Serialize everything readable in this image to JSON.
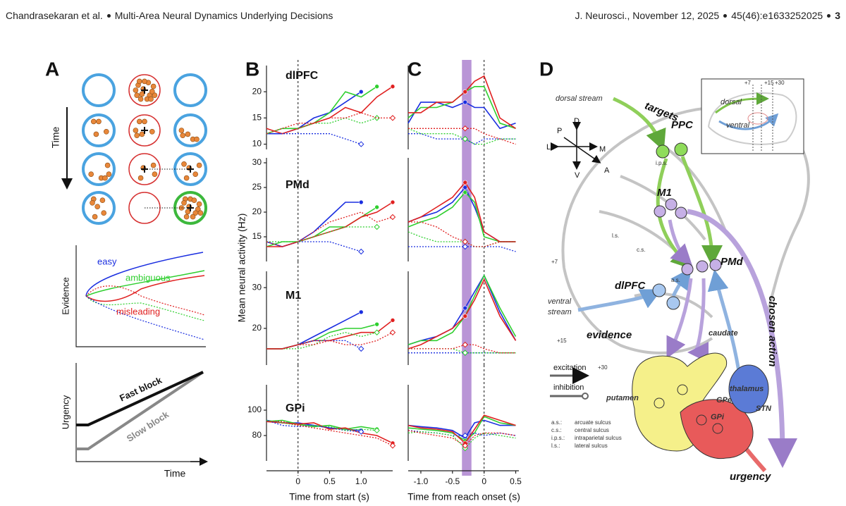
{
  "header": {
    "authors": "Chandrasekaran et al.",
    "title": "Multi-Area Neural Dynamics Underlying Decisions",
    "journal": "J. Neurosci., November 12, 2025",
    "citation": "45(46):e1633252025",
    "page": "3"
  },
  "panel_a": {
    "label": "A",
    "time_arrow": "Time",
    "evidence": {
      "y_label": "Evidence",
      "easy": "easy",
      "ambiguous": "ambiguous",
      "misleading": "misleading"
    },
    "urgency": {
      "y_label": "Urgency",
      "x_label": "Time",
      "fast": "Fast block",
      "slow": "Slow block"
    }
  },
  "panel_b": {
    "label": "B",
    "x_label": "Time from start (s)"
  },
  "panel_c": {
    "label": "C",
    "x_label": "Time from reach onset (s)"
  },
  "y_label": "Mean neural activity (Hz)",
  "chart_data": [
    {
      "type": "line",
      "title": "dlPFC",
      "x": [
        -0.5,
        -0.25,
        0,
        0.25,
        0.5,
        0.75,
        1.0,
        1.25,
        1.5
      ],
      "xlim": [
        -0.5,
        1.5
      ],
      "ylim": [
        9,
        25
      ],
      "yticks": [
        10,
        15,
        20
      ],
      "vline": 0,
      "series": [
        {
          "color": "#1a2ee0",
          "style": "solid",
          "values": [
            12,
            12,
            13,
            15,
            16,
            18,
            20,
            null,
            null
          ]
        },
        {
          "color": "#2fcf2f",
          "style": "solid",
          "values": [
            12,
            13,
            13,
            14,
            16,
            20,
            19,
            21,
            null
          ]
        },
        {
          "color": "#e02020",
          "style": "solid",
          "values": [
            13,
            12,
            13,
            14,
            15,
            17,
            16,
            19,
            21
          ]
        },
        {
          "color": "#1a2ee0",
          "style": "dotted",
          "values": [
            12,
            12,
            12,
            12,
            12,
            11,
            10,
            null,
            null
          ]
        },
        {
          "color": "#2fcf2f",
          "style": "dotted",
          "values": [
            12,
            13,
            13,
            14,
            14,
            15,
            14,
            15,
            null
          ]
        },
        {
          "color": "#e02020",
          "style": "dotted",
          "values": [
            12,
            13,
            14,
            14,
            15,
            15,
            16,
            15,
            15
          ]
        }
      ]
    },
    {
      "type": "line",
      "title": "PMd",
      "x": [
        -0.5,
        -0.25,
        0,
        0.25,
        0.5,
        0.75,
        1.0,
        1.25,
        1.5
      ],
      "xlim": [
        -0.5,
        1.5
      ],
      "ylim": [
        10,
        31
      ],
      "yticks": [
        15,
        20,
        25,
        30
      ],
      "vline": 0,
      "series": [
        {
          "color": "#1a2ee0",
          "style": "solid",
          "values": [
            14,
            13,
            14,
            16,
            19,
            22,
            22,
            null,
            null
          ]
        },
        {
          "color": "#2fcf2f",
          "style": "solid",
          "values": [
            13,
            14,
            14,
            15,
            17,
            17,
            19,
            21,
            null
          ]
        },
        {
          "color": "#e02020",
          "style": "solid",
          "values": [
            13,
            13,
            14,
            15,
            16,
            17,
            19,
            20,
            22
          ]
        },
        {
          "color": "#1a2ee0",
          "style": "dotted",
          "values": [
            14,
            13,
            14,
            14,
            14,
            13,
            12,
            null,
            null
          ]
        },
        {
          "color": "#2fcf2f",
          "style": "dotted",
          "values": [
            14,
            14,
            14,
            15,
            16,
            17,
            17,
            17,
            null
          ]
        },
        {
          "color": "#e02020",
          "style": "dotted",
          "values": [
            14,
            13,
            14,
            16,
            18,
            19,
            20,
            18,
            19
          ]
        }
      ]
    },
    {
      "type": "line",
      "title": "M1",
      "x": [
        -0.5,
        -0.25,
        0,
        0.25,
        0.5,
        0.75,
        1.0,
        1.25,
        1.5
      ],
      "xlim": [
        -0.5,
        1.5
      ],
      "ylim": [
        11,
        34
      ],
      "yticks": [
        20,
        30
      ],
      "vline": 0,
      "series": [
        {
          "color": "#1a2ee0",
          "style": "solid",
          "values": [
            15,
            15,
            16,
            18,
            20,
            22,
            24,
            null,
            null
          ]
        },
        {
          "color": "#2fcf2f",
          "style": "solid",
          "values": [
            15,
            15,
            16,
            17,
            19,
            20,
            20,
            21,
            null
          ]
        },
        {
          "color": "#e02020",
          "style": "solid",
          "values": [
            15,
            15,
            16,
            17,
            17,
            18,
            19,
            19,
            22
          ]
        },
        {
          "color": "#1a2ee0",
          "style": "dotted",
          "values": [
            15,
            15,
            16,
            17,
            17,
            17,
            15,
            null,
            null
          ]
        },
        {
          "color": "#2fcf2f",
          "style": "dotted",
          "values": [
            15,
            15,
            15,
            16,
            18,
            19,
            18,
            19,
            null
          ]
        },
        {
          "color": "#e02020",
          "style": "dotted",
          "values": [
            15,
            15,
            16,
            16,
            17,
            16,
            16,
            17,
            19
          ]
        }
      ]
    },
    {
      "type": "line",
      "title": "GPi",
      "x": [
        -0.5,
        -0.25,
        0,
        0.25,
        0.5,
        0.75,
        1.0,
        1.25,
        1.5
      ],
      "xlim": [
        -0.5,
        1.5
      ],
      "ylim": [
        60,
        120
      ],
      "yticks": [
        80,
        100
      ],
      "xticks": [
        0,
        0.5,
        {
          "value": 1,
          "label": "1.0"
        }
      ],
      "vline": 0,
      "series": [
        {
          "color": "#1a2ee0",
          "style": "solid",
          "values": [
            92,
            90,
            90,
            88,
            86,
            85,
            84,
            null,
            null
          ]
        },
        {
          "color": "#2fcf2f",
          "style": "solid",
          "values": [
            91,
            92,
            89,
            87,
            88,
            85,
            87,
            85,
            null
          ]
        },
        {
          "color": "#e02020",
          "style": "solid",
          "values": [
            91,
            90,
            89,
            90,
            85,
            86,
            82,
            80,
            74
          ]
        },
        {
          "color": "#1a2ee0",
          "style": "dotted",
          "values": [
            92,
            88,
            87,
            88,
            86,
            84,
            83,
            null,
            null
          ]
        },
        {
          "color": "#2fcf2f",
          "style": "dotted",
          "values": [
            92,
            90,
            88,
            88,
            87,
            84,
            85,
            84,
            null
          ]
        },
        {
          "color": "#e02020",
          "style": "dotted",
          "values": [
            91,
            91,
            88,
            86,
            84,
            82,
            80,
            78,
            72
          ]
        }
      ]
    },
    {
      "type": "line",
      "x": [
        -1.2,
        -1.0,
        -0.75,
        -0.5,
        -0.3,
        -0.15,
        0,
        0.25,
        0.5
      ],
      "xlim": [
        -1.2,
        0.55
      ],
      "ylim": [
        9,
        25
      ],
      "vline": 0,
      "band": [
        -0.35,
        -0.2
      ],
      "band_color": "#b995d6",
      "series": [
        {
          "color": "#1a2ee0",
          "style": "solid",
          "values": [
            14,
            18,
            18,
            17,
            18,
            17,
            17,
            13,
            14
          ]
        },
        {
          "color": "#2fcf2f",
          "style": "solid",
          "values": [
            15,
            17,
            17,
            18,
            20,
            21,
            21,
            14,
            13
          ]
        },
        {
          "color": "#e02020",
          "style": "solid",
          "values": [
            16,
            16,
            18,
            18,
            20,
            22,
            23,
            15,
            13
          ]
        },
        {
          "color": "#1a2ee0",
          "style": "dotted",
          "values": [
            12,
            12,
            11,
            11,
            11,
            10,
            11,
            11,
            11
          ]
        },
        {
          "color": "#2fcf2f",
          "style": "dotted",
          "values": [
            13,
            12,
            12,
            12,
            11,
            10,
            10,
            11,
            11
          ]
        },
        {
          "color": "#e02020",
          "style": "dotted",
          "values": [
            13,
            13,
            13,
            13,
            13,
            13,
            12,
            11,
            10
          ]
        }
      ]
    },
    {
      "type": "line",
      "x": [
        -1.2,
        -1.0,
        -0.75,
        -0.5,
        -0.3,
        -0.15,
        0,
        0.25,
        0.5
      ],
      "xlim": [
        -1.2,
        0.55
      ],
      "ylim": [
        10,
        31
      ],
      "vline": 0,
      "band": [
        -0.35,
        -0.2
      ],
      "band_color": "#b995d6",
      "series": [
        {
          "color": "#1a2ee0",
          "style": "solid",
          "values": [
            18,
            19,
            20,
            22,
            25,
            21,
            16,
            14,
            14
          ]
        },
        {
          "color": "#2fcf2f",
          "style": "solid",
          "values": [
            17,
            18,
            19,
            21,
            24,
            22,
            15,
            14,
            14
          ]
        },
        {
          "color": "#e02020",
          "style": "solid",
          "values": [
            18,
            19,
            21,
            23,
            26,
            23,
            16,
            14,
            14
          ]
        },
        {
          "color": "#1a2ee0",
          "style": "dotted",
          "values": [
            13,
            13,
            13,
            13,
            13,
            13,
            13,
            13,
            12
          ]
        },
        {
          "color": "#2fcf2f",
          "style": "dotted",
          "values": [
            16,
            15,
            14,
            14,
            14,
            13,
            13,
            14,
            14
          ]
        },
        {
          "color": "#e02020",
          "style": "dotted",
          "values": [
            18,
            18,
            17,
            15,
            14,
            13,
            13,
            14,
            14
          ]
        }
      ]
    },
    {
      "type": "line",
      "x": [
        -1.2,
        -1.0,
        -0.75,
        -0.5,
        -0.3,
        -0.15,
        0,
        0.25,
        0.5
      ],
      "xlim": [
        -1.2,
        0.55
      ],
      "ylim": [
        11,
        34
      ],
      "vline": 0,
      "band": [
        -0.35,
        -0.2
      ],
      "band_color": "#b995d6",
      "series": [
        {
          "color": "#1a2ee0",
          "style": "solid",
          "values": [
            16,
            17,
            18,
            20,
            25,
            29,
            33,
            24,
            17
          ]
        },
        {
          "color": "#2fcf2f",
          "style": "solid",
          "values": [
            16,
            17,
            17,
            19,
            23,
            28,
            33,
            25,
            18
          ]
        },
        {
          "color": "#e02020",
          "style": "solid",
          "values": [
            15,
            16,
            18,
            20,
            23,
            27,
            32,
            23,
            17
          ]
        },
        {
          "color": "#1a2ee0",
          "style": "dotted",
          "values": [
            14,
            14,
            14,
            14,
            14,
            14,
            14,
            14,
            14
          ]
        },
        {
          "color": "#2fcf2f",
          "style": "dotted",
          "values": [
            15,
            15,
            15,
            15,
            14,
            14,
            14,
            14,
            14
          ]
        },
        {
          "color": "#e02020",
          "style": "dotted",
          "values": [
            15,
            15,
            15,
            15,
            16,
            16,
            15,
            14,
            14
          ]
        }
      ]
    },
    {
      "type": "line",
      "x": [
        -1.2,
        -1.0,
        -0.75,
        -0.5,
        -0.3,
        -0.15,
        0,
        0.25,
        0.5
      ],
      "xlim": [
        -1.2,
        0.55
      ],
      "ylim": [
        60,
        120
      ],
      "xticks": [
        {
          "value": -1,
          "label": "-1.0"
        },
        -0.5,
        0,
        0.5
      ],
      "vline": 0,
      "band": [
        -0.35,
        -0.2
      ],
      "band_color": "#b995d6",
      "series": [
        {
          "color": "#1a2ee0",
          "style": "solid",
          "values": [
            88,
            87,
            86,
            84,
            78,
            90,
            92,
            88,
            88
          ]
        },
        {
          "color": "#2fcf2f",
          "style": "solid",
          "values": [
            86,
            85,
            84,
            82,
            76,
            82,
            95,
            90,
            88
          ]
        },
        {
          "color": "#e02020",
          "style": "solid",
          "values": [
            88,
            86,
            85,
            83,
            74,
            85,
            96,
            92,
            88
          ]
        },
        {
          "color": "#1a2ee0",
          "style": "dotted",
          "values": [
            84,
            83,
            82,
            80,
            80,
            82,
            80,
            82,
            80
          ]
        },
        {
          "color": "#2fcf2f",
          "style": "dotted",
          "values": [
            82,
            83,
            82,
            80,
            70,
            78,
            82,
            80,
            78
          ]
        },
        {
          "color": "#e02020",
          "style": "dotted",
          "values": [
            84,
            82,
            80,
            78,
            72,
            80,
            82,
            82,
            80
          ]
        }
      ]
    }
  ],
  "panel_d": {
    "label": "D",
    "dorsal_stream": "dorsal stream",
    "targets": "targets",
    "ppc": "PPC",
    "m1": "M1",
    "pmd": "PMd",
    "dlpfc": "dlPFC",
    "ventral_stream": [
      "ventral",
      "stream"
    ],
    "evidence": "evidence",
    "caudate": "caudate",
    "thalamus": "thalamus",
    "putamen": "putamen",
    "gpe": "GPe",
    "gpi": "GPi",
    "stn": "STN",
    "urgency": "urgency",
    "chosen_action": "chosen action",
    "excitation": "excitation",
    "inhibition": "inhibition",
    "compass": {
      "d": "D",
      "p": "P",
      "l": "L",
      "m": "M",
      "v": "V",
      "a": "A"
    },
    "depths": [
      "+7",
      "+15",
      "+30"
    ],
    "sulci": {
      "ips": "i.p.s.",
      "ls": "l.s.",
      "cs": "c.s.",
      "as": "a.s."
    },
    "legend": [
      [
        "a.s.:",
        "arcuate sulcus"
      ],
      [
        "c.s.:",
        "central sulcus"
      ],
      [
        "i.p.s.:",
        "intraparietal sulcus"
      ],
      [
        "l.s.:",
        "lateral sulcus"
      ]
    ],
    "inset": {
      "dorsal": "dorsal",
      "ventral": "ventral"
    }
  }
}
